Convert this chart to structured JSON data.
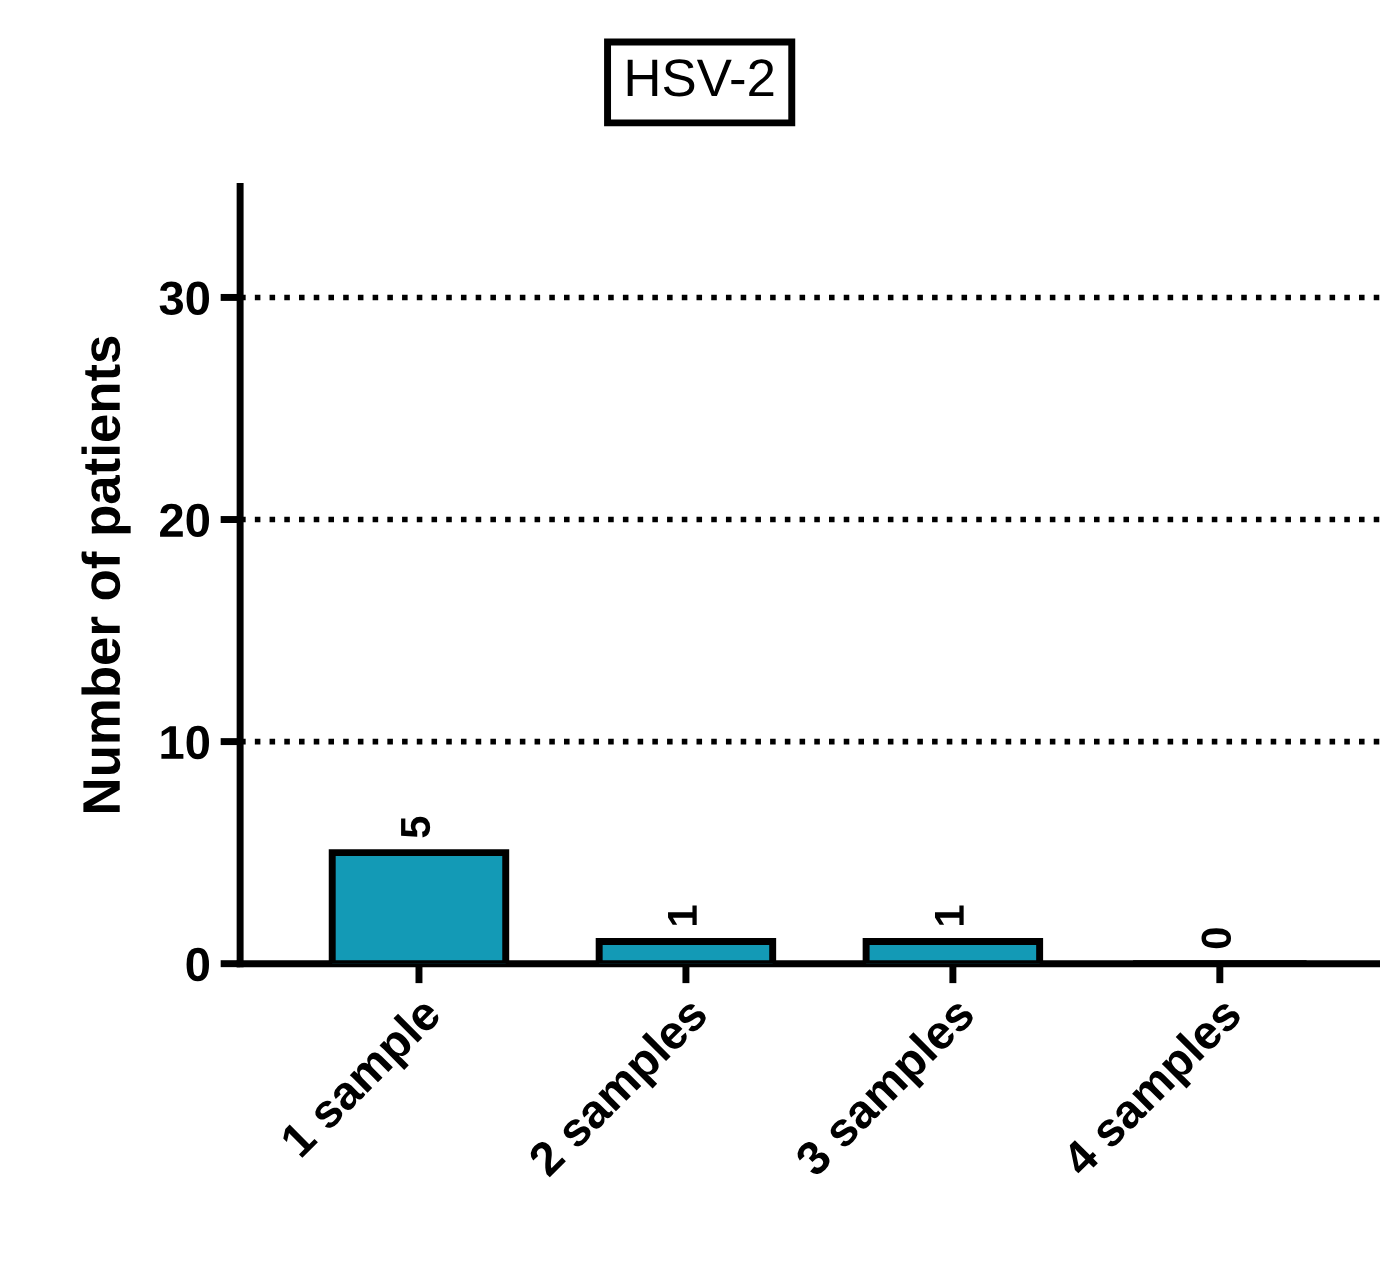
{
  "chart_data": {
    "type": "bar",
    "title": "HSV-2",
    "ylabel": "Number of patients",
    "categories": [
      "1 sample",
      "2 samples",
      "3 samples",
      "4 samples"
    ],
    "values": [
      5,
      1,
      1,
      0
    ],
    "color": "#139ab6",
    "ylim": [
      0,
      35
    ],
    "yticks": [
      0,
      10,
      20,
      30
    ],
    "grid": "y",
    "line_style": "dotted",
    "data_labels": true
  }
}
